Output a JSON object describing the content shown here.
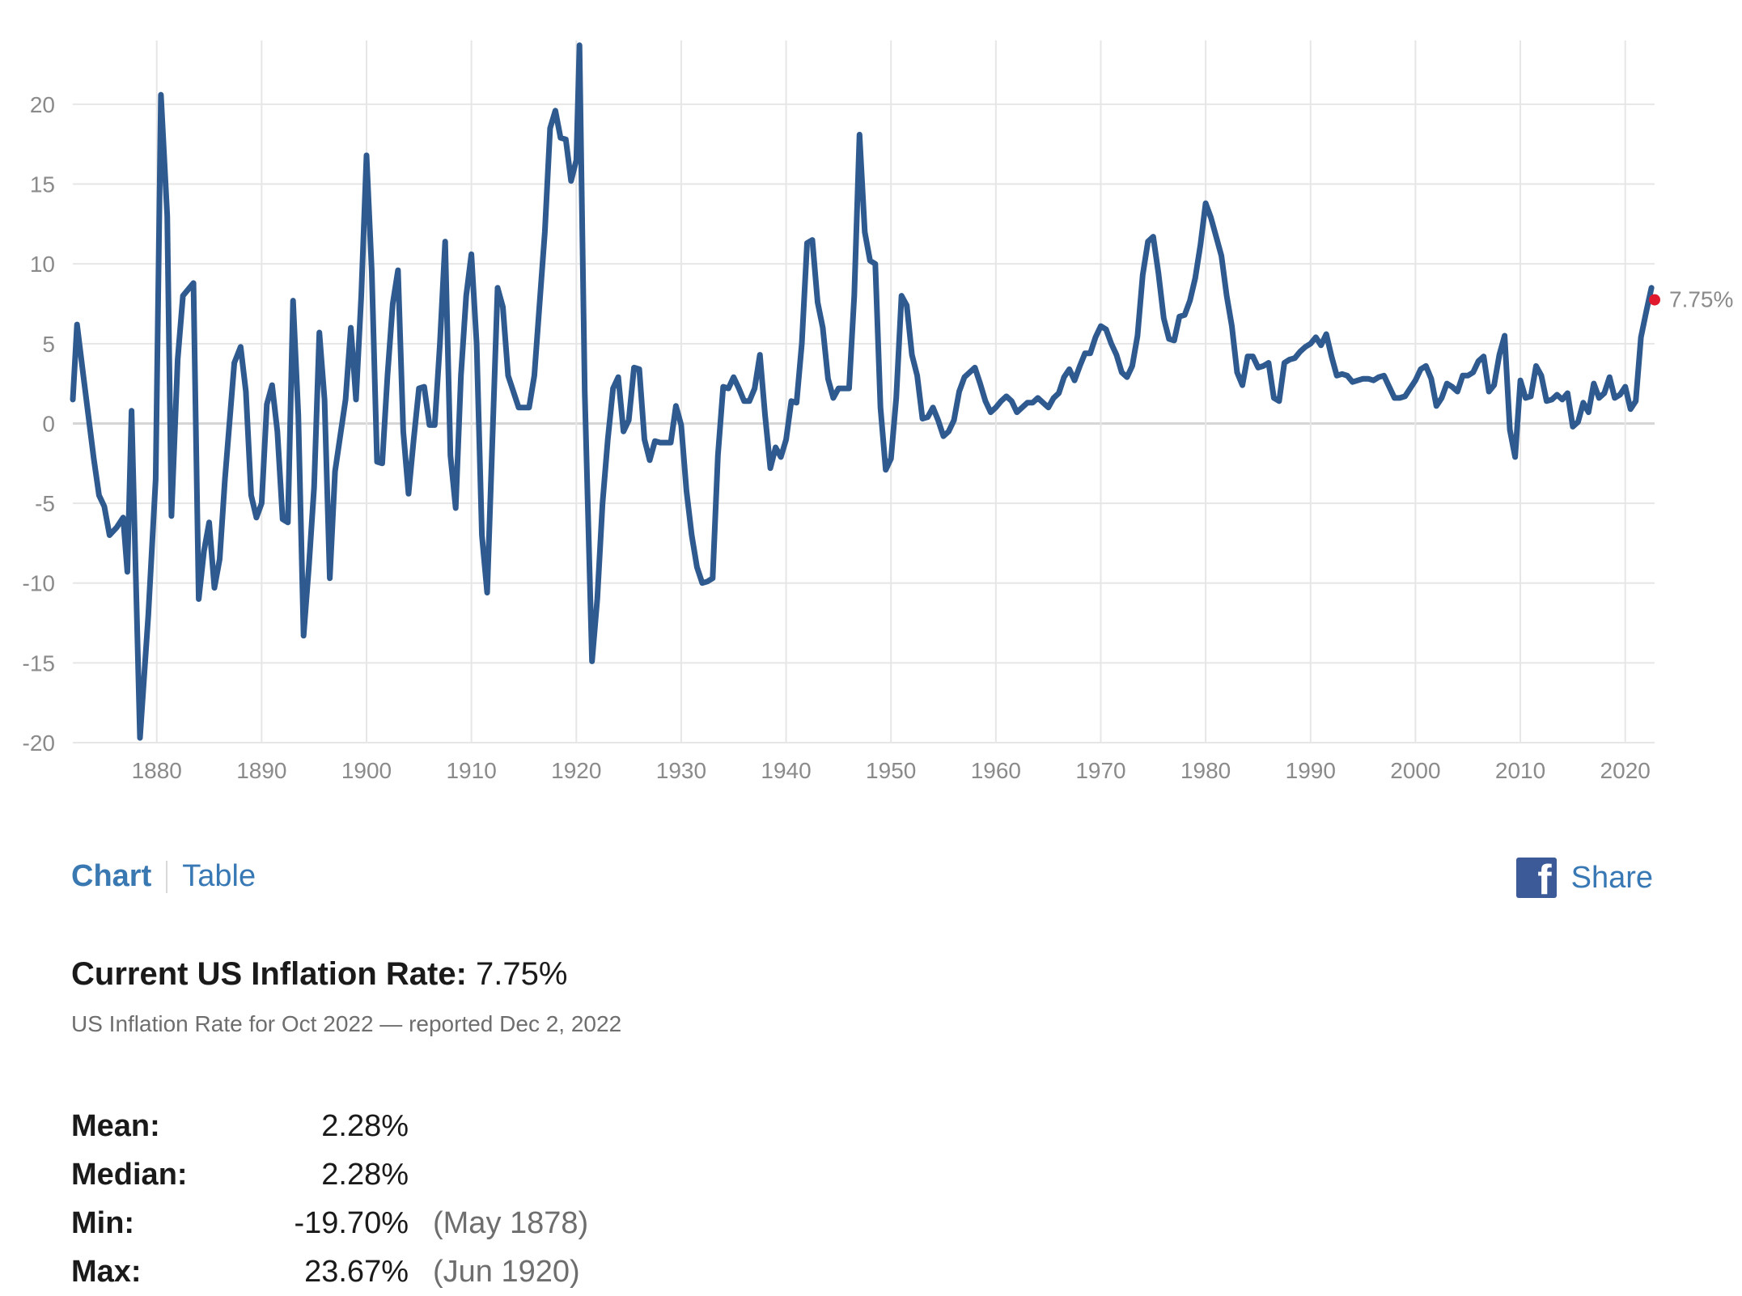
{
  "chart_data": {
    "type": "line",
    "title": "",
    "xlabel": "",
    "ylabel": "",
    "xlim": [
      1872,
      2022.8
    ],
    "ylim": [
      -20,
      24
    ],
    "y_ticks": [
      -20,
      -15,
      -10,
      -5,
      0,
      5,
      10,
      15,
      20
    ],
    "x_ticks": [
      1880,
      1890,
      1900,
      1910,
      1920,
      1930,
      1940,
      1950,
      1960,
      1970,
      1980,
      1990,
      2000,
      2010,
      2020
    ],
    "grid": true,
    "series": [
      {
        "color": "#2f5a8f",
        "x": [
          1872,
          1872.4,
          1873,
          1874,
          1874.5,
          1875,
          1875.5,
          1876.2,
          1876.8,
          1877.2,
          1877.6,
          1878.4,
          1879.2,
          1879.9,
          1880.4,
          1881,
          1881.4,
          1882,
          1882.5,
          1883.5,
          1884,
          1884.5,
          1885,
          1885.5,
          1886,
          1886.5,
          1887.4,
          1888,
          1888.5,
          1889,
          1889.5,
          1890,
          1890.5,
          1891,
          1891.5,
          1892,
          1892.5,
          1893,
          1893.5,
          1894,
          1894.5,
          1895,
          1895.5,
          1896,
          1896.5,
          1897,
          1898,
          1898.5,
          1899,
          1899.5,
          1900,
          1900.5,
          1901,
          1901.5,
          1902,
          1902.5,
          1903,
          1903.5,
          1904,
          1904.5,
          1905,
          1905.5,
          1906,
          1906.5,
          1907,
          1907.5,
          1908,
          1908.5,
          1909,
          1909.5,
          1910,
          1910.5,
          1911,
          1911.5,
          1912,
          1912.5,
          1913,
          1913.5,
          1914,
          1914.5,
          1915,
          1915.5,
          1916,
          1917,
          1917.5,
          1918,
          1918.5,
          1919,
          1919.5,
          1920,
          1920.3,
          1920.8,
          1921.5,
          1922,
          1922.5,
          1923,
          1923.5,
          1924,
          1924.5,
          1925,
          1925.5,
          1926,
          1926.5,
          1927,
          1927.5,
          1928,
          1928.5,
          1929,
          1929.5,
          1930,
          1930.5,
          1931,
          1931.5,
          1932,
          1932.5,
          1933,
          1933.5,
          1934,
          1934.5,
          1935,
          1935.5,
          1936,
          1936.5,
          1937,
          1937.5,
          1938,
          1938.5,
          1939,
          1939.5,
          1940,
          1940.5,
          1941,
          1941.5,
          1942,
          1942.5,
          1943,
          1943.5,
          1944,
          1944.5,
          1945,
          1945.5,
          1946,
          1946.5,
          1947,
          1947.5,
          1948,
          1948.5,
          1949,
          1949.5,
          1950,
          1950.5,
          1951,
          1951.5,
          1952,
          1952.5,
          1953,
          1953.5,
          1954,
          1954.5,
          1955,
          1955.5,
          1956,
          1956.5,
          1957,
          1957.5,
          1958,
          1958.5,
          1959,
          1959.5,
          1960,
          1960.5,
          1961,
          1961.5,
          1962,
          1962.5,
          1963,
          1963.5,
          1964,
          1964.5,
          1965,
          1965.5,
          1966,
          1966.5,
          1967,
          1967.5,
          1968,
          1968.5,
          1969,
          1969.5,
          1970,
          1970.5,
          1971,
          1971.5,
          1972,
          1972.5,
          1973,
          1973.5,
          1974,
          1974.5,
          1975,
          1975.5,
          1976,
          1976.5,
          1977,
          1977.5,
          1978,
          1978.5,
          1979,
          1979.5,
          1980,
          1980.5,
          1981,
          1981.5,
          1982,
          1982.5,
          1983,
          1983.5,
          1984,
          1984.5,
          1985,
          1985.5,
          1986,
          1986.5,
          1987,
          1987.5,
          1988,
          1988.5,
          1989,
          1989.5,
          1990,
          1990.5,
          1991,
          1991.5,
          1992,
          1992.5,
          1993,
          1993.5,
          1994,
          1994.5,
          1995,
          1995.5,
          1996,
          1996.5,
          1997,
          1997.5,
          1998,
          1998.5,
          1999,
          1999.5,
          2000,
          2000.5,
          2001,
          2001.5,
          2002,
          2002.5,
          2003,
          2003.5,
          2004,
          2004.5,
          2005,
          2005.5,
          2006,
          2006.5,
          2007,
          2007.5,
          2008,
          2008.5,
          2009,
          2009.5,
          2010,
          2010.5,
          2011,
          2011.5,
          2012,
          2012.5,
          2013,
          2013.5,
          2014,
          2014.5,
          2015,
          2015.5,
          2016,
          2016.5,
          2017,
          2017.5,
          2018,
          2018.5,
          2019,
          2019.5,
          2020,
          2020.5,
          2021,
          2021.5,
          2022,
          2022.5
        ],
        "y": [
          1.5,
          6.2,
          3.0,
          -2.2,
          -4.5,
          -5.2,
          -7.0,
          -6.5,
          -5.9,
          -9.3,
          0.8,
          -19.7,
          -12.0,
          -3.5,
          20.6,
          13.0,
          -5.8,
          4.0,
          8.0,
          8.8,
          -11.0,
          -8.0,
          -6.2,
          -10.3,
          -8.5,
          -3.5,
          3.8,
          4.8,
          2.0,
          -4.5,
          -5.9,
          -5.0,
          1.2,
          2.4,
          -0.5,
          -6.0,
          -6.2,
          7.7,
          0.5,
          -13.3,
          -9.0,
          -4.0,
          5.7,
          1.5,
          -9.7,
          -3.0,
          1.5,
          6.0,
          1.5,
          8.0,
          16.8,
          9.5,
          -2.4,
          -2.5,
          3.0,
          7.5,
          9.6,
          -0.5,
          -4.4,
          -1.0,
          2.2,
          2.3,
          -0.1,
          -0.1,
          5.0,
          11.4,
          -2.0,
          -5.3,
          3.0,
          8.0,
          10.6,
          5.0,
          -7.0,
          -10.6,
          -1.0,
          8.5,
          7.3,
          3.0,
          2.0,
          1.0,
          1.0,
          1.0,
          3.0,
          12.0,
          18.5,
          19.6,
          17.9,
          17.8,
          15.2,
          16.5,
          23.7,
          2.0,
          -14.9,
          -11.0,
          -5.0,
          -1.0,
          2.2,
          2.9,
          -0.5,
          0.2,
          3.5,
          3.4,
          -1.0,
          -2.3,
          -1.1,
          -1.2,
          -1.2,
          -1.2,
          1.1,
          -0.1,
          -4.2,
          -7.0,
          -9.0,
          -10.0,
          -9.9,
          -9.7,
          -2.0,
          2.3,
          2.2,
          2.9,
          2.2,
          1.4,
          1.4,
          2.2,
          4.3,
          0.5,
          -2.8,
          -1.5,
          -2.1,
          -1.0,
          1.4,
          1.3,
          5.0,
          11.3,
          11.5,
          7.6,
          6.0,
          2.8,
          1.6,
          2.2,
          2.2,
          2.2,
          8.0,
          18.1,
          12.0,
          10.2,
          10.0,
          1.0,
          -2.9,
          -2.2,
          1.6,
          8.0,
          7.4,
          4.3,
          3.0,
          0.3,
          0.4,
          1.0,
          0.2,
          -0.8,
          -0.5,
          0.2,
          2.0,
          2.9,
          3.2,
          3.5,
          2.5,
          1.4,
          0.7,
          1.0,
          1.4,
          1.7,
          1.4,
          0.7,
          1.0,
          1.3,
          1.3,
          1.6,
          1.3,
          1.0,
          1.6,
          1.9,
          2.9,
          3.4,
          2.7,
          3.6,
          4.4,
          4.4,
          5.4,
          6.1,
          5.9,
          5.0,
          4.3,
          3.2,
          2.9,
          3.6,
          5.5,
          9.3,
          11.4,
          11.7,
          9.4,
          6.6,
          5.3,
          5.2,
          6.7,
          6.8,
          7.7,
          9.1,
          11.2,
          13.8,
          12.9,
          11.7,
          10.5,
          8.0,
          6.1,
          3.2,
          2.4,
          4.2,
          4.2,
          3.5,
          3.6,
          3.8,
          1.6,
          1.4,
          3.8,
          4.0,
          4.1,
          4.5,
          4.8,
          5.0,
          5.4,
          4.9,
          5.6,
          4.2,
          3.0,
          3.1,
          3.0,
          2.6,
          2.7,
          2.8,
          2.8,
          2.7,
          2.9,
          3.0,
          2.3,
          1.6,
          1.6,
          1.7,
          2.2,
          2.7,
          3.4,
          3.6,
          2.8,
          1.1,
          1.6,
          2.5,
          2.3,
          2.0,
          3.0,
          3.0,
          3.2,
          3.9,
          4.2,
          2.0,
          2.4,
          4.3,
          5.5,
          -0.4,
          -2.1,
          2.7,
          1.6,
          1.7,
          3.6,
          3.0,
          1.4,
          1.5,
          1.8,
          1.5,
          1.9,
          -0.2,
          0.1,
          1.3,
          0.7,
          2.5,
          1.6,
          1.9,
          2.9,
          1.6,
          1.8,
          2.3,
          0.9,
          1.4,
          5.4,
          7.0,
          8.5
        ]
      }
    ],
    "last_point": {
      "x": 2022.8,
      "y": 7.75,
      "label": "7.75%",
      "color": "#e0192f"
    }
  },
  "tabs": {
    "chart_label": "Chart",
    "table_label": "Table",
    "active": "Chart"
  },
  "share": {
    "icon": "facebook-icon",
    "label": "Share",
    "icon_color": "#3c5a97"
  },
  "current": {
    "key": "Current US Inflation Rate:",
    "value": "7.75%",
    "subline": "US Inflation Rate for Oct 2022 — reported Dec 2, 2022"
  },
  "stats": [
    {
      "key": "Mean:",
      "value": "2.28%",
      "date": ""
    },
    {
      "key": "Median:",
      "value": "2.28%",
      "date": ""
    },
    {
      "key": "Min:",
      "value": "-19.70%",
      "date": "(May 1878)"
    },
    {
      "key": "Max:",
      "value": "23.67%",
      "date": "(Jun 1920)"
    }
  ]
}
